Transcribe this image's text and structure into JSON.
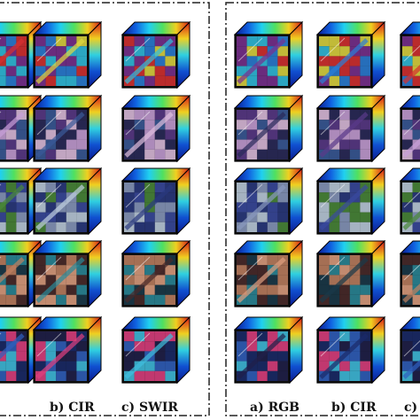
{
  "left_panel": {
    "captions": [
      "b) CIR",
      "c) SWIR"
    ]
  },
  "right_panel": {
    "captions": [
      "a) RGB",
      "b) CIR",
      "c)"
    ]
  },
  "colors": {
    "panel_border": "#222222",
    "spectral_stripe": [
      "#1030c8",
      "#18c8f0",
      "#40e070",
      "#f0e040",
      "#e02020"
    ]
  }
}
